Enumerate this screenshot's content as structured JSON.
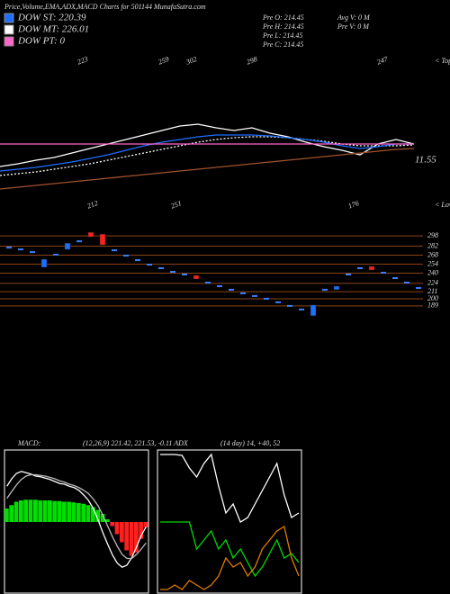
{
  "chart_data": [
    {
      "type": "line",
      "title": "Price,Volume,EMA,ADX,MACD Charts for 501144  MunafaSutra.com",
      "stats": [
        "Pre   O: 214.45",
        "Pre   H: 214.45",
        "Pre   L: 214.45",
        "Pre   C: 214.45",
        "Avg  V: 0  M",
        "Pre   V: 0  M"
      ],
      "tops": [
        223,
        259,
        302,
        298,
        247
      ],
      "tops_label": "< Tops",
      "lows": [
        212,
        251,
        176
      ],
      "lows_label": "< Lows",
      "value_label": 11.55,
      "categories": [
        null,
        null,
        null,
        null,
        null,
        null,
        null,
        null,
        null,
        null,
        null,
        null,
        null,
        null,
        null,
        null,
        null,
        null,
        null,
        null,
        null,
        null,
        null,
        null
      ],
      "ylim": [
        150,
        320
      ],
      "series": [
        {
          "color": "#ffffff",
          "values": [
            195,
            198,
            202,
            205,
            210,
            215,
            220,
            225,
            230,
            235,
            240,
            242,
            238,
            235,
            238,
            232,
            228,
            222,
            217,
            213,
            208,
            220,
            225,
            220
          ]
        },
        {
          "color": "#a0522d",
          "values": [
            170,
            172,
            174,
            176,
            178,
            180,
            182,
            184,
            186,
            188,
            190,
            192,
            194,
            196,
            198,
            200,
            202,
            204,
            206,
            208,
            210,
            212,
            214,
            215
          ]
        },
        {
          "name": "DOW MT: 226.01",
          "color": "#ffffff",
          "dashed": true,
          "values": [
            185,
            187,
            189,
            192,
            195,
            198,
            202,
            206,
            210,
            214,
            218,
            222,
            225,
            227,
            228,
            228,
            227,
            225,
            223,
            220,
            218,
            218,
            218,
            219
          ]
        },
        {
          "name": "DOW ST: 220.39",
          "color": "#1e6fff",
          "values": [
            190,
            192,
            194,
            197,
            200,
            204,
            208,
            213,
            218,
            222,
            225,
            228,
            230,
            230,
            230,
            229,
            227,
            225,
            222,
            218,
            215,
            217,
            220,
            220
          ]
        },
        {
          "name": "DOW PT: 0",
          "color": "#ff66cc",
          "values": [
            220,
            220,
            220,
            220,
            220,
            220,
            220,
            220,
            220,
            220,
            220,
            220,
            220,
            220,
            220,
            220,
            220,
            220,
            220,
            220,
            220,
            220,
            220,
            220
          ]
        }
      ]
    },
    {
      "type": "candlestick",
      "ylim": [
        172,
        308
      ],
      "yticks": [
        298,
        282,
        268,
        254,
        240,
        224,
        211,
        200,
        189
      ],
      "up_color": "#1e6fff",
      "down_color": "#ff2020",
      "flat_color": "#3a7fff",
      "grid_color": "#8b4513",
      "open": [
        null,
        null,
        null,
        249.1,
        null,
        277.0,
        null,
        303.6,
        300.8,
        null,
        null,
        null,
        null,
        null,
        null,
        null,
        236.5,
        null,
        null,
        null,
        null,
        null,
        null,
        null,
        null,
        null,
        173.6,
        null,
        214.2,
        null,
        null,
        250.5,
        null,
        null,
        null,
        null
      ],
      "close": [
        279.8,
        277.0,
        272.8,
        261.7,
        268.7,
        286.8,
        289.6,
        296.6,
        284.0,
        275.6,
        267.3,
        260.3,
        253.3,
        247.7,
        242.1,
        237.9,
        230.9,
        225.3,
        219.7,
        214.2,
        208.6,
        204.4,
        200.2,
        194.6,
        189.0,
        183.4,
        190.4,
        214.2,
        219.7,
        237.9,
        247.7,
        244.9,
        240.7,
        232.3,
        225.3,
        216.9
      ]
    },
    {
      "type": "bar",
      "label": "MACD:",
      "params": "(12,26,9) 221.42, 221.53, -0.11 ADX",
      "ylim": [
        -10,
        10
      ],
      "up_color": "#00e000",
      "down_color": "#ff2020",
      "values": [
        2.0,
        2.5,
        3.0,
        3.2,
        3.3,
        3.3,
        3.3,
        3.2,
        3.2,
        3.2,
        3.1,
        3.1,
        3.0,
        3.0,
        2.9,
        2.8,
        2.7,
        2.5,
        2.2,
        1.8,
        1.2,
        0.4,
        -0.6,
        -1.8,
        -3.0,
        -4.2,
        -5.0,
        -4.5,
        -2.5,
        -0.8
      ],
      "series": [
        {
          "color": "#ffffff",
          "values": [
            5.3,
            6.4,
            7.2,
            7.5,
            7.3,
            7.1,
            6.8,
            6.7,
            6.5,
            6.3,
            6.0,
            5.7,
            5.6,
            5.3,
            5.1,
            4.7,
            4.0,
            3.2,
            2.0,
            0.3,
            -1.6,
            -3.3,
            -4.9,
            -6.1,
            -6.7,
            -6.4,
            -5.3,
            -3.7,
            -2.0,
            -0.7
          ]
        },
        {
          "color": "#bbbbbb",
          "values": [
            3.5,
            4.5,
            5.5,
            6.3,
            6.8,
            7.0,
            7.0,
            6.9,
            6.8,
            6.6,
            6.4,
            6.1,
            5.9,
            5.6,
            5.4,
            5.1,
            4.7,
            4.2,
            3.4,
            2.4,
            1.0,
            -0.6,
            -2.2,
            -3.6,
            -4.8,
            -5.4,
            -5.4,
            -4.8,
            -4.0,
            -3.1
          ]
        }
      ]
    },
    {
      "type": "line",
      "params": "(14 day) 14, +40, 52",
      "ylim": [
        0,
        60
      ],
      "categories": [
        null,
        null,
        null,
        null,
        null,
        null,
        null,
        null,
        null,
        null,
        null,
        null,
        null,
        null,
        null,
        null,
        null,
        null,
        null,
        null
      ],
      "series": [
        {
          "color": "#ffffff",
          "values": [
            60,
            60,
            60,
            59.6,
            54,
            50,
            56,
            60,
            46,
            34,
            38,
            30,
            32,
            38,
            44,
            50,
            56,
            42,
            32,
            34
          ]
        },
        {
          "color": "#00dd00",
          "values": [
            30,
            30,
            30,
            30,
            30,
            18,
            22,
            26,
            18,
            22,
            14,
            18,
            12,
            6,
            10,
            16,
            22,
            14,
            16,
            12
          ]
        },
        {
          "color": "#e07b00",
          "values": [
            0,
            0,
            2,
            0,
            4,
            2,
            0,
            2,
            6,
            14,
            10,
            12,
            6,
            10,
            18,
            22,
            26,
            28,
            14,
            6
          ]
        }
      ]
    }
  ]
}
